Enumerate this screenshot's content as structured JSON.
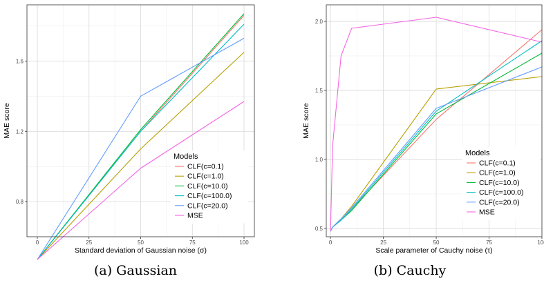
{
  "captions": [
    "(a) Gaussian",
    "(b) Cauchy"
  ],
  "legend_title": "Models",
  "chart_data": [
    {
      "type": "line",
      "title": "",
      "xlabel": "Standard deviation of Gaussian noise (σ)",
      "ylabel": "MAE score",
      "xlim": [
        -5,
        105
      ],
      "ylim": [
        0.6,
        1.92
      ],
      "x_ticks": [
        0,
        25,
        50,
        75,
        100
      ],
      "x_tick_labels": [
        "0",
        "25",
        "50",
        "75",
        "100"
      ],
      "y_ticks": [
        0.8,
        1.2,
        1.6
      ],
      "y_tick_labels": [
        "0.8",
        "1.2",
        "1.6"
      ],
      "grid": true,
      "legend_position": "bottom-right",
      "x": [
        0,
        50,
        100
      ],
      "series": [
        {
          "name": "CLF(c=0.1)",
          "color": "#F8766D",
          "values": [
            0.47,
            1.2,
            1.86
          ]
        },
        {
          "name": "CLF(c=1.0)",
          "color": "#B79F00",
          "values": [
            0.47,
            1.1,
            1.65
          ]
        },
        {
          "name": "CLF(c=10.0)",
          "color": "#00BA38",
          "values": [
            0.47,
            1.21,
            1.87
          ]
        },
        {
          "name": "CLF(c=100.0)",
          "color": "#00BFC4",
          "values": [
            0.47,
            1.2,
            1.81
          ]
        },
        {
          "name": "CLF(c=20.0)",
          "color": "#619CFF",
          "values": [
            0.47,
            1.4,
            1.73
          ]
        },
        {
          "name": "MSE",
          "color": "#F564E3",
          "values": [
            0.47,
            0.99,
            1.37
          ]
        }
      ]
    },
    {
      "type": "line",
      "title": "",
      "xlabel": "Scale parameter of Cauchy noise (τ)",
      "ylabel": "MAE score",
      "xlim": [
        -2,
        100
      ],
      "ylim": [
        0.44,
        2.12
      ],
      "x_ticks": [
        0,
        25,
        50,
        75,
        100
      ],
      "x_tick_labels": [
        "0",
        "25",
        "50",
        "75",
        "100"
      ],
      "y_ticks": [
        0.5,
        1.0,
        1.5,
        2.0
      ],
      "y_tick_labels": [
        "0.5",
        "1.0",
        "1.5",
        "2.0"
      ],
      "grid": true,
      "legend_position": "bottom-right",
      "x": [
        0,
        1,
        5,
        10,
        50,
        100
      ],
      "series": [
        {
          "name": "CLF(c=0.1)",
          "color": "#F8766D",
          "values": [
            0.48,
            0.51,
            0.56,
            0.64,
            1.29,
            1.94
          ]
        },
        {
          "name": "CLF(c=1.0)",
          "color": "#B79F00",
          "values": [
            0.48,
            0.51,
            0.57,
            0.66,
            1.51,
            1.6
          ]
        },
        {
          "name": "CLF(c=10.0)",
          "color": "#00BA38",
          "values": [
            0.48,
            0.51,
            0.56,
            0.63,
            1.33,
            1.77
          ]
        },
        {
          "name": "CLF(c=100.0)",
          "color": "#00BFC4",
          "values": [
            0.48,
            0.51,
            0.56,
            0.64,
            1.35,
            1.86
          ]
        },
        {
          "name": "CLF(c=20.0)",
          "color": "#619CFF",
          "values": [
            0.48,
            0.51,
            0.57,
            0.65,
            1.37,
            1.67
          ]
        },
        {
          "name": "MSE",
          "color": "#F564E3",
          "values": [
            0.48,
            1.1,
            1.75,
            1.95,
            2.03,
            1.85
          ]
        }
      ]
    }
  ]
}
